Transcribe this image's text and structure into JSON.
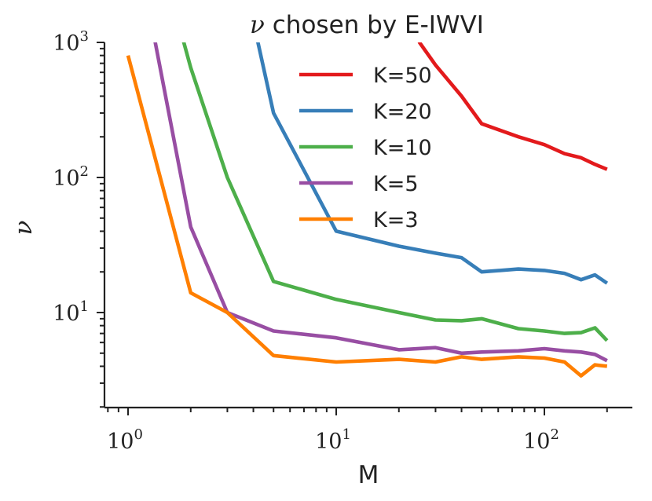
{
  "chart_data": {
    "type": "line",
    "title_prefix": "ν",
    "title_rest": " chosen by E-IWVI",
    "xlabel": "M",
    "ylabel": "ν",
    "xscale": "log",
    "yscale": "log",
    "xlim": [
      0.75,
      260
    ],
    "ylim": [
      2,
      1000
    ],
    "xticks": [
      {
        "value": 1,
        "base": "10",
        "exp": "0"
      },
      {
        "value": 10,
        "base": "10",
        "exp": "1"
      },
      {
        "value": 100,
        "base": "10",
        "exp": "2"
      }
    ],
    "yticks": [
      {
        "value": 10,
        "base": "10",
        "exp": "1"
      },
      {
        "value": 100,
        "base": "10",
        "exp": "2"
      },
      {
        "value": 1000,
        "base": "10",
        "exp": "3"
      }
    ],
    "legend_position": "upper-center",
    "series": [
      {
        "name": "K=50",
        "color": "#e31a1c",
        "x": [
          25,
          30,
          40,
          50,
          75,
          100,
          125,
          150,
          175,
          200
        ],
        "y": [
          1010,
          680,
          400,
          250,
          200,
          175,
          150,
          140,
          125,
          115
        ]
      },
      {
        "name": "K=20",
        "color": "#377eb8",
        "x": [
          4.2,
          5,
          10,
          20,
          30,
          40,
          50,
          75,
          100,
          125,
          150,
          175,
          200
        ],
        "y": [
          1010,
          300,
          40,
          31,
          27.5,
          25.5,
          20,
          21,
          20.5,
          19.5,
          17.5,
          19,
          16.5
        ]
      },
      {
        "name": "K=10",
        "color": "#4daf4a",
        "x": [
          1.85,
          2,
          3,
          5,
          10,
          20,
          30,
          40,
          50,
          75,
          100,
          125,
          150,
          175,
          200
        ],
        "y": [
          1010,
          650,
          100,
          17,
          12.5,
          10,
          8.8,
          8.7,
          9,
          7.6,
          7.3,
          7,
          7.1,
          7.7,
          6.2
        ]
      },
      {
        "name": "K=5",
        "color": "#984ea3",
        "x": [
          1.35,
          2,
          3,
          5,
          10,
          20,
          30,
          40,
          50,
          75,
          100,
          125,
          150,
          175,
          200
        ],
        "y": [
          1010,
          43,
          10,
          7.3,
          6.5,
          5.3,
          5.5,
          5.0,
          5.1,
          5.2,
          5.4,
          5.2,
          5.1,
          4.9,
          4.4
        ]
      },
      {
        "name": "K=3",
        "color": "#ff7f00",
        "x": [
          1,
          2,
          3,
          5,
          10,
          20,
          30,
          40,
          50,
          75,
          100,
          125,
          150,
          175,
          200
        ],
        "y": [
          800,
          14,
          10,
          4.8,
          4.3,
          4.5,
          4.3,
          4.7,
          4.5,
          4.7,
          4.6,
          4.3,
          3.4,
          4.1,
          4.0
        ]
      }
    ]
  }
}
